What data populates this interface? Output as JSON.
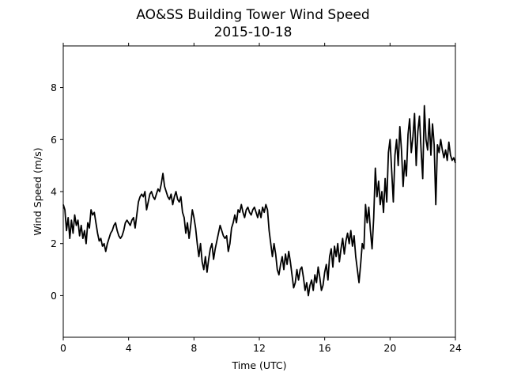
{
  "chart_data": {
    "type": "line",
    "title": "AO&SS Building Tower Wind Speed",
    "subtitle": "2015-10-18",
    "xlabel": "Time (UTC)",
    "ylabel": "Wind Speed (m/s)",
    "xlim": [
      0,
      24
    ],
    "ylim": [
      -1.6,
      9.6
    ],
    "xticks": [
      0,
      4,
      8,
      12,
      16,
      20,
      24
    ],
    "xtick_labels": [
      "0",
      "4",
      "8",
      "12",
      "16",
      "20",
      "24"
    ],
    "yticks": [
      0,
      2,
      4,
      6,
      8
    ],
    "ytick_labels": [
      "0",
      "2",
      "4",
      "6",
      "8"
    ],
    "grid": false,
    "line_color": "#000000",
    "series": [
      {
        "name": "",
        "x": [
          0,
          0.1,
          0.2,
          0.3,
          0.4,
          0.5,
          0.6,
          0.7,
          0.8,
          0.9,
          1.0,
          1.1,
          1.2,
          1.3,
          1.4,
          1.5,
          1.6,
          1.7,
          1.8,
          1.9,
          2.0,
          2.1,
          2.2,
          2.3,
          2.4,
          2.5,
          2.6,
          2.7,
          2.8,
          2.9,
          3.0,
          3.1,
          3.2,
          3.3,
          3.4,
          3.5,
          3.6,
          3.7,
          3.8,
          3.9,
          4.0,
          4.1,
          4.2,
          4.3,
          4.4,
          4.5,
          4.6,
          4.7,
          4.8,
          4.9,
          5.0,
          5.1,
          5.2,
          5.3,
          5.4,
          5.5,
          5.6,
          5.7,
          5.8,
          5.9,
          6.0,
          6.1,
          6.2,
          6.3,
          6.4,
          6.5,
          6.6,
          6.7,
          6.8,
          6.9,
          7.0,
          7.1,
          7.2,
          7.3,
          7.4,
          7.5,
          7.6,
          7.7,
          7.8,
          7.9,
          8.0,
          8.1,
          8.2,
          8.3,
          8.4,
          8.5,
          8.6,
          8.7,
          8.8,
          8.9,
          9.0,
          9.1,
          9.2,
          9.3,
          9.4,
          9.5,
          9.6,
          9.7,
          9.8,
          9.9,
          10.0,
          10.1,
          10.2,
          10.3,
          10.4,
          10.5,
          10.6,
          10.7,
          10.8,
          10.9,
          11.0,
          11.1,
          11.2,
          11.3,
          11.4,
          11.5,
          11.6,
          11.7,
          11.8,
          11.9,
          12.0,
          12.1,
          12.2,
          12.3,
          12.4,
          12.5,
          12.6,
          12.7,
          12.8,
          12.9,
          13.0,
          13.1,
          13.2,
          13.3,
          13.4,
          13.5,
          13.6,
          13.7,
          13.8,
          13.9,
          14.0,
          14.1,
          14.2,
          14.3,
          14.4,
          14.5,
          14.6,
          14.7,
          14.8,
          14.9,
          15.0,
          15.1,
          15.2,
          15.3,
          15.4,
          15.5,
          15.6,
          15.7,
          15.8,
          15.9,
          16.0,
          16.1,
          16.2,
          16.3,
          16.4,
          16.5,
          16.6,
          16.7,
          16.8,
          16.9,
          17.0,
          17.1,
          17.2,
          17.3,
          17.4,
          17.5,
          17.6,
          17.7,
          17.8,
          17.9,
          18.0,
          18.1,
          18.2,
          18.3,
          18.4,
          18.5,
          18.6,
          18.7,
          18.8,
          18.9,
          19.0,
          19.1,
          19.2,
          19.3,
          19.4,
          19.5,
          19.6,
          19.7,
          19.8,
          19.9,
          20.0,
          20.1,
          20.2,
          20.3,
          20.4,
          20.5,
          20.6,
          20.7,
          20.8,
          20.9,
          21.0,
          21.1,
          21.2,
          21.3,
          21.4,
          21.5,
          21.6,
          21.7,
          21.8,
          21.9,
          22.0,
          22.1,
          22.2,
          22.3,
          22.4,
          22.5,
          22.6,
          22.7,
          22.8,
          22.9,
          23.0,
          23.1,
          23.2,
          23.3,
          23.4,
          23.5,
          23.6,
          23.7,
          23.8,
          23.9,
          24.0
        ],
        "values": [
          3.5,
          3.3,
          2.5,
          3.0,
          2.2,
          2.9,
          2.4,
          3.1,
          2.7,
          2.9,
          2.3,
          2.7,
          2.2,
          2.5,
          2.0,
          2.8,
          2.6,
          3.3,
          3.1,
          3.2,
          2.8,
          2.4,
          2.1,
          2.2,
          1.9,
          2.0,
          1.7,
          2.0,
          2.2,
          2.4,
          2.5,
          2.7,
          2.8,
          2.5,
          2.3,
          2.2,
          2.3,
          2.5,
          2.8,
          2.9,
          2.8,
          2.7,
          2.9,
          3.0,
          2.6,
          3.1,
          3.6,
          3.8,
          3.9,
          3.8,
          4.0,
          3.3,
          3.6,
          3.9,
          4.0,
          3.8,
          3.7,
          3.9,
          4.1,
          4.0,
          4.3,
          4.7,
          4.2,
          4.0,
          3.8,
          3.7,
          3.9,
          3.5,
          3.8,
          4.0,
          3.7,
          3.6,
          3.8,
          3.2,
          3.0,
          2.4,
          2.8,
          2.2,
          2.7,
          3.3,
          3.0,
          2.6,
          2.0,
          1.5,
          2.0,
          1.3,
          1.0,
          1.5,
          0.9,
          1.4,
          1.8,
          2.0,
          1.4,
          1.8,
          2.1,
          2.4,
          2.7,
          2.5,
          2.3,
          2.2,
          2.3,
          1.7,
          2.0,
          2.6,
          2.8,
          3.1,
          2.8,
          3.3,
          3.2,
          3.5,
          3.2,
          3.0,
          3.3,
          3.4,
          3.2,
          3.1,
          3.3,
          3.4,
          3.2,
          3.0,
          3.3,
          3.0,
          3.4,
          3.2,
          3.5,
          3.3,
          2.5,
          2.0,
          1.5,
          2.0,
          1.6,
          1.0,
          0.8,
          1.2,
          1.5,
          1.0,
          1.6,
          1.2,
          1.7,
          1.3,
          0.8,
          0.3,
          0.5,
          1.0,
          0.6,
          1.0,
          1.1,
          0.7,
          0.2,
          0.5,
          0.0,
          0.4,
          0.6,
          0.2,
          0.8,
          0.5,
          1.1,
          0.7,
          0.2,
          0.4,
          0.9,
          1.2,
          0.6,
          1.5,
          1.8,
          1.1,
          1.9,
          1.5,
          2.0,
          1.3,
          1.8,
          2.2,
          1.6,
          2.1,
          2.4,
          2.0,
          2.5,
          1.9,
          2.3,
          1.5,
          1.0,
          0.5,
          1.2,
          2.0,
          1.8,
          3.5,
          2.8,
          3.4,
          2.5,
          1.8,
          3.0,
          4.9,
          3.8,
          4.4,
          3.5,
          4.0,
          3.2,
          4.5,
          3.6,
          5.5,
          6.0,
          4.8,
          3.6,
          5.4,
          6.0,
          5.0,
          6.5,
          5.6,
          4.2,
          5.2,
          4.6,
          6.2,
          6.8,
          5.5,
          6.1,
          7.0,
          5.0,
          6.3,
          6.9,
          5.6,
          4.5,
          7.3,
          6.0,
          5.6,
          6.8,
          5.4,
          6.6,
          5.8,
          3.5,
          5.8,
          5.5,
          6.0,
          5.6,
          5.3,
          5.6,
          5.2,
          5.9,
          5.4,
          5.2,
          5.3,
          5.1
        ]
      }
    ]
  }
}
